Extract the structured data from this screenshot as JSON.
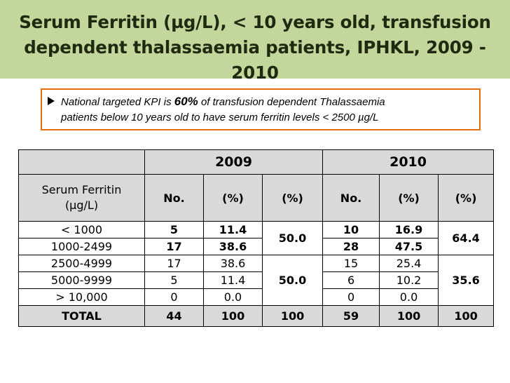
{
  "title": {
    "line1": "Serum Ferritin (µg/L), < 10 years old, transfusion",
    "line2": "dependent thalassaemia patients, IPHKL, 2009 - 2010"
  },
  "kpi": {
    "before": "National targeted KPI is ",
    "highlight": "60%",
    "after": " of transfusion dependent Thalassaemia",
    "line2": "patients below 10 years old to have serum ferritin levels < 2500 µg/L"
  },
  "table": {
    "years": [
      "2009",
      "2010"
    ],
    "row_header": [
      "Serum Ferritin",
      "(µg/L)"
    ],
    "columns": [
      "No.",
      "(%)",
      "(%)",
      "No.",
      "(%)",
      "(%)"
    ],
    "rows": [
      {
        "range": "< 1000",
        "n2009": "5",
        "p2009": "11.4",
        "n2010": "10",
        "p2010": "16.9"
      },
      {
        "range": "1000-2499",
        "n2009": "17",
        "p2009": "38.6",
        "n2010": "28",
        "p2010": "47.5"
      },
      {
        "range": "2500-4999",
        "n2009": "17",
        "p2009": "38.6",
        "n2010": "15",
        "p2010": "25.4"
      },
      {
        "range": "5000-9999",
        "n2009": "5",
        "p2009": "11.4",
        "n2010": "6",
        "p2010": "10.2"
      },
      {
        "range": "> 10,000",
        "n2009": "0",
        "p2009": "0.0",
        "n2010": "0",
        "p2010": "0.0"
      }
    ],
    "groups": {
      "below_2500_2009": "50.0",
      "above_2500_2009": "50.0",
      "below_2500_2010": "64.4",
      "above_2500_2010": "35.6"
    },
    "total": {
      "label": "TOTAL",
      "n2009": "44",
      "p2009": "100",
      "g2009": "100",
      "n2010": "59",
      "p2010": "100",
      "g2010": "100"
    }
  },
  "colors": {
    "title_band": "#c3d69b",
    "kpi_border": "#e46c0a",
    "header_fill": "#d9d9d9"
  }
}
